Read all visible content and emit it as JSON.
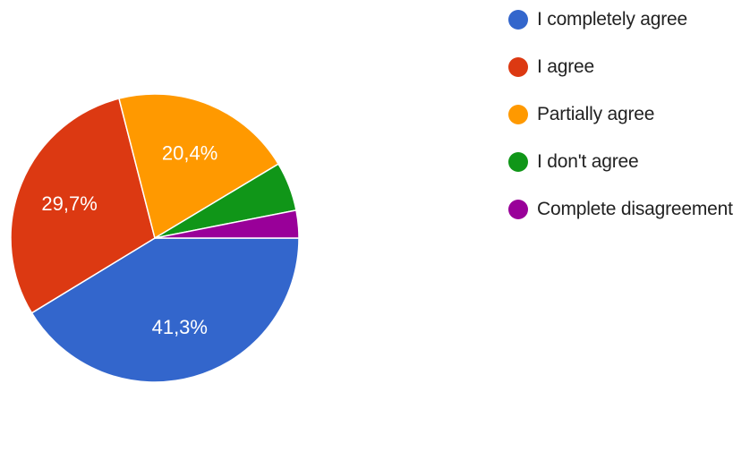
{
  "chart_data": {
    "type": "pie",
    "start_angle_deg": 0,
    "direction": "clockwise",
    "legend_position": "right",
    "categories": [
      "I completely agree",
      "I agree",
      "Partially agree",
      "I don't agree",
      "Complete disagreement"
    ],
    "values": [
      41.3,
      29.7,
      20.4,
      5.5,
      3.1
    ],
    "value_labels": [
      "41,3%",
      "29,7%",
      "20,4%",
      "",
      ""
    ],
    "colors": [
      "#3366cc",
      "#dc3912",
      "#ff9900",
      "#109618",
      "#990099"
    ]
  }
}
